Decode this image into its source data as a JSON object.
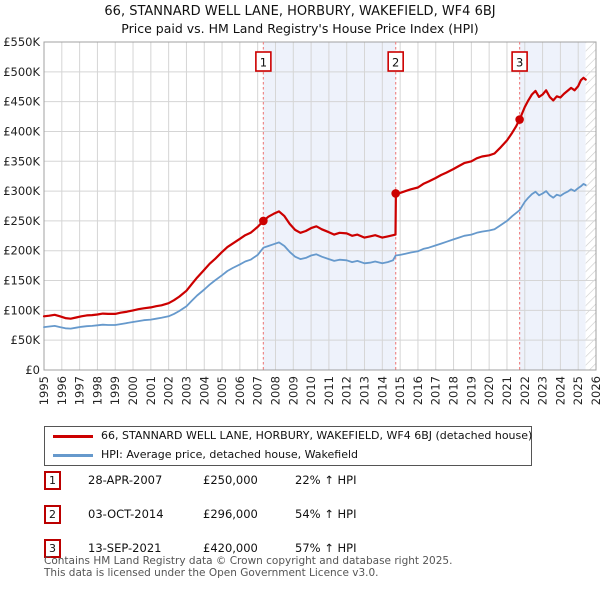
{
  "title": "66, STANNARD WELL LANE, HORBURY, WAKEFIELD, WF4 6BJ",
  "subtitle": "Price paid vs. HM Land Registry's House Price Index (HPI)",
  "legend": [
    {
      "label": "66, STANNARD WELL LANE, HORBURY, WAKEFIELD, WF4 6BJ (detached house)",
      "color": "#cc0000"
    },
    {
      "label": "HPI: Average price, detached house, Wakefield",
      "color": "#6699cc"
    }
  ],
  "sales": [
    {
      "n": "1",
      "date": "28-APR-2007",
      "price": "£250,000",
      "pct": "22% ↑ HPI"
    },
    {
      "n": "2",
      "date": "03-OCT-2014",
      "price": "£296,000",
      "pct": "54% ↑ HPI"
    },
    {
      "n": "3",
      "date": "13-SEP-2021",
      "price": "£420,000",
      "pct": "57% ↑ HPI"
    }
  ],
  "footer": {
    "line1": "Contains HM Land Registry data © Crown copyright and database right 2025.",
    "line2": "This data is licensed under the Open Government Licence v3.0."
  },
  "chart_data": {
    "type": "line",
    "title": "66, STANNARD WELL LANE, HORBURY, WAKEFIELD, WF4 6BJ",
    "subtitle": "Price paid vs. HM Land Registry's House Price Index (HPI)",
    "x_range": [
      1995,
      2026
    ],
    "y_range": [
      0,
      550000
    ],
    "x_ticks": [
      1995,
      1996,
      1997,
      1998,
      1999,
      2000,
      2001,
      2002,
      2003,
      2004,
      2005,
      2006,
      2007,
      2008,
      2009,
      2010,
      2011,
      2012,
      2013,
      2014,
      2015,
      2016,
      2017,
      2018,
      2019,
      2020,
      2021,
      2022,
      2023,
      2024,
      2025,
      2026
    ],
    "y_ticks": [
      {
        "v": 0,
        "label": "£0"
      },
      {
        "v": 50000,
        "label": "£50K"
      },
      {
        "v": 100000,
        "label": "£100K"
      },
      {
        "v": 150000,
        "label": "£150K"
      },
      {
        "v": 200000,
        "label": "£200K"
      },
      {
        "v": 250000,
        "label": "£250K"
      },
      {
        "v": 300000,
        "label": "£300K"
      },
      {
        "v": 350000,
        "label": "£350K"
      },
      {
        "v": 400000,
        "label": "£400K"
      },
      {
        "v": 450000,
        "label": "£450K"
      },
      {
        "v": 500000,
        "label": "£500K"
      },
      {
        "v": 550000,
        "label": "£550K"
      }
    ],
    "colors": {
      "red": "#cc0000",
      "blue": "#6699cc",
      "dashed": "#ee8888",
      "band": "#eef2fb",
      "grid": "#d5d5d5",
      "border": "#a0a0a0",
      "hatch": "#c9c9c9"
    },
    "bands": [
      [
        2007.32,
        2014.75
      ],
      [
        2021.71,
        2025.42
      ]
    ],
    "hatch": [
      2025.42,
      2026
    ],
    "sales": [
      {
        "n": "1",
        "x": 2007.32,
        "price": 250000
      },
      {
        "n": "2",
        "x": 2014.75,
        "price": 296000
      },
      {
        "n": "3",
        "x": 2021.71,
        "price": 420000
      }
    ],
    "series": [
      {
        "name": "66, STANNARD WELL LANE, HORBURY, WAKEFIELD, WF4 6BJ (detached house)",
        "color": "#cc0000",
        "width": 2.2,
        "points": [
          [
            1995.0,
            90000
          ],
          [
            1995.3,
            91000
          ],
          [
            1995.6,
            92500
          ],
          [
            1995.9,
            90000
          ],
          [
            1996.2,
            87000
          ],
          [
            1996.5,
            86000
          ],
          [
            1996.8,
            88000
          ],
          [
            1997.1,
            90000
          ],
          [
            1997.4,
            91500
          ],
          [
            1997.7,
            92000
          ],
          [
            1998.0,
            93000
          ],
          [
            1998.3,
            94500
          ],
          [
            1998.6,
            94000
          ],
          [
            1999.0,
            94000
          ],
          [
            1999.3,
            96000
          ],
          [
            1999.6,
            97500
          ],
          [
            2000.0,
            100000
          ],
          [
            2000.3,
            102000
          ],
          [
            2000.6,
            103500
          ],
          [
            2001.0,
            105000
          ],
          [
            2001.3,
            107000
          ],
          [
            2001.6,
            108500
          ],
          [
            2002.0,
            112000
          ],
          [
            2002.3,
            117000
          ],
          [
            2002.6,
            123000
          ],
          [
            2003.0,
            133000
          ],
          [
            2003.3,
            144000
          ],
          [
            2003.6,
            155000
          ],
          [
            2004.0,
            168000
          ],
          [
            2004.3,
            178000
          ],
          [
            2004.6,
            186000
          ],
          [
            2005.0,
            198000
          ],
          [
            2005.3,
            206000
          ],
          [
            2005.6,
            212000
          ],
          [
            2006.0,
            220000
          ],
          [
            2006.3,
            226000
          ],
          [
            2006.6,
            230000
          ],
          [
            2007.0,
            240000
          ],
          [
            2007.32,
            250000
          ],
          [
            2007.6,
            257000
          ],
          [
            2007.9,
            262000
          ],
          [
            2008.2,
            266000
          ],
          [
            2008.5,
            258000
          ],
          [
            2008.8,
            245000
          ],
          [
            2009.1,
            235000
          ],
          [
            2009.4,
            230000
          ],
          [
            2009.7,
            233000
          ],
          [
            2010.0,
            238000
          ],
          [
            2010.3,
            241000
          ],
          [
            2010.6,
            236000
          ],
          [
            2011.0,
            231000
          ],
          [
            2011.3,
            227000
          ],
          [
            2011.6,
            230000
          ],
          [
            2012.0,
            229000
          ],
          [
            2012.3,
            225000
          ],
          [
            2012.6,
            227000
          ],
          [
            2013.0,
            222000
          ],
          [
            2013.3,
            224000
          ],
          [
            2013.6,
            226000
          ],
          [
            2014.0,
            222000
          ],
          [
            2014.3,
            224000
          ],
          [
            2014.6,
            226000
          ],
          [
            2014.74,
            227000
          ],
          [
            2014.76,
            296000
          ],
          [
            2015.0,
            297000
          ],
          [
            2015.3,
            300000
          ],
          [
            2015.6,
            303000
          ],
          [
            2016.0,
            306000
          ],
          [
            2016.3,
            312000
          ],
          [
            2016.6,
            316000
          ],
          [
            2017.0,
            322000
          ],
          [
            2017.3,
            327000
          ],
          [
            2017.6,
            331000
          ],
          [
            2018.0,
            337000
          ],
          [
            2018.3,
            342000
          ],
          [
            2018.6,
            347000
          ],
          [
            2019.0,
            350000
          ],
          [
            2019.3,
            355000
          ],
          [
            2019.6,
            358000
          ],
          [
            2020.0,
            360000
          ],
          [
            2020.3,
            363000
          ],
          [
            2020.6,
            372000
          ],
          [
            2021.0,
            385000
          ],
          [
            2021.3,
            398000
          ],
          [
            2021.5,
            408000
          ],
          [
            2021.71,
            420000
          ],
          [
            2022.0,
            441000
          ],
          [
            2022.2,
            452000
          ],
          [
            2022.4,
            462000
          ],
          [
            2022.6,
            468000
          ],
          [
            2022.8,
            458000
          ],
          [
            2023.0,
            462000
          ],
          [
            2023.2,
            469000
          ],
          [
            2023.4,
            458000
          ],
          [
            2023.6,
            452000
          ],
          [
            2023.8,
            459000
          ],
          [
            2024.0,
            457000
          ],
          [
            2024.2,
            463000
          ],
          [
            2024.4,
            468000
          ],
          [
            2024.6,
            473000
          ],
          [
            2024.8,
            469000
          ],
          [
            2025.0,
            476000
          ],
          [
            2025.15,
            486000
          ],
          [
            2025.3,
            490000
          ],
          [
            2025.42,
            487000
          ]
        ]
      },
      {
        "name": "HPI: Average price, detached house, Wakefield",
        "color": "#6699cc",
        "width": 1.8,
        "points": [
          [
            1995.0,
            72000
          ],
          [
            1995.3,
            73000
          ],
          [
            1995.6,
            74000
          ],
          [
            1995.9,
            72000
          ],
          [
            1996.2,
            70000
          ],
          [
            1996.5,
            69500
          ],
          [
            1996.8,
            71000
          ],
          [
            1997.1,
            72500
          ],
          [
            1997.4,
            73500
          ],
          [
            1997.7,
            74000
          ],
          [
            1998.0,
            75000
          ],
          [
            1998.3,
            76000
          ],
          [
            1998.6,
            75500
          ],
          [
            1999.0,
            75500
          ],
          [
            1999.3,
            77000
          ],
          [
            1999.6,
            78500
          ],
          [
            2000.0,
            80500
          ],
          [
            2000.3,
            82000
          ],
          [
            2000.6,
            83500
          ],
          [
            2001.0,
            84500
          ],
          [
            2001.3,
            86000
          ],
          [
            2001.6,
            87500
          ],
          [
            2002.0,
            90000
          ],
          [
            2002.3,
            94000
          ],
          [
            2002.6,
            99000
          ],
          [
            2003.0,
            107000
          ],
          [
            2003.3,
            116000
          ],
          [
            2003.6,
            125000
          ],
          [
            2004.0,
            135000
          ],
          [
            2004.3,
            143000
          ],
          [
            2004.6,
            150000
          ],
          [
            2005.0,
            159000
          ],
          [
            2005.3,
            166000
          ],
          [
            2005.6,
            171000
          ],
          [
            2006.0,
            177000
          ],
          [
            2006.3,
            182000
          ],
          [
            2006.6,
            185000
          ],
          [
            2007.0,
            193000
          ],
          [
            2007.32,
            205000
          ],
          [
            2007.6,
            208000
          ],
          [
            2007.9,
            211000
          ],
          [
            2008.2,
            214000
          ],
          [
            2008.5,
            208000
          ],
          [
            2008.8,
            198000
          ],
          [
            2009.1,
            190000
          ],
          [
            2009.4,
            186000
          ],
          [
            2009.7,
            188000
          ],
          [
            2010.0,
            192000
          ],
          [
            2010.3,
            194000
          ],
          [
            2010.6,
            190000
          ],
          [
            2011.0,
            186000
          ],
          [
            2011.3,
            183000
          ],
          [
            2011.6,
            185000
          ],
          [
            2012.0,
            184000
          ],
          [
            2012.3,
            181000
          ],
          [
            2012.6,
            183000
          ],
          [
            2013.0,
            179000
          ],
          [
            2013.3,
            180000
          ],
          [
            2013.6,
            182000
          ],
          [
            2014.0,
            179000
          ],
          [
            2014.3,
            181000
          ],
          [
            2014.6,
            184000
          ],
          [
            2014.75,
            192000
          ],
          [
            2015.0,
            193000
          ],
          [
            2015.3,
            195000
          ],
          [
            2015.6,
            197000
          ],
          [
            2016.0,
            199000
          ],
          [
            2016.3,
            203000
          ],
          [
            2016.6,
            205000
          ],
          [
            2017.0,
            209000
          ],
          [
            2017.3,
            212000
          ],
          [
            2017.6,
            215000
          ],
          [
            2018.0,
            219000
          ],
          [
            2018.3,
            222000
          ],
          [
            2018.6,
            225000
          ],
          [
            2019.0,
            227000
          ],
          [
            2019.3,
            230000
          ],
          [
            2019.6,
            232000
          ],
          [
            2020.0,
            234000
          ],
          [
            2020.3,
            236000
          ],
          [
            2020.6,
            242000
          ],
          [
            2021.0,
            250000
          ],
          [
            2021.3,
            258000
          ],
          [
            2021.5,
            263000
          ],
          [
            2021.71,
            268000
          ],
          [
            2022.0,
            282000
          ],
          [
            2022.2,
            289000
          ],
          [
            2022.4,
            295000
          ],
          [
            2022.6,
            299000
          ],
          [
            2022.8,
            293000
          ],
          [
            2023.0,
            296000
          ],
          [
            2023.2,
            300000
          ],
          [
            2023.4,
            293000
          ],
          [
            2023.6,
            289000
          ],
          [
            2023.8,
            294000
          ],
          [
            2024.0,
            292000
          ],
          [
            2024.2,
            296000
          ],
          [
            2024.4,
            299000
          ],
          [
            2024.6,
            303000
          ],
          [
            2024.8,
            300000
          ],
          [
            2025.0,
            305000
          ],
          [
            2025.15,
            308000
          ],
          [
            2025.3,
            312000
          ],
          [
            2025.42,
            310000
          ]
        ]
      }
    ]
  }
}
